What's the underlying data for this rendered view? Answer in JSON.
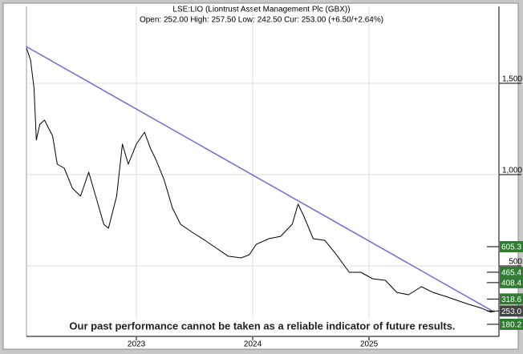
{
  "chart_data": {
    "type": "line",
    "title": "LSE:LIO (Liontrust Asset Management Plc (GBX))",
    "subtitle": "Open: 252.00 High: 257.50 Low: 242.50 Cur: 253.00 (+6.50/+2.64%)",
    "annotation": "Our past performance cannot be taken as a reliable indicator of future results.",
    "color": "#000000",
    "x": [
      2022.055,
      2022.09,
      2022.12,
      2022.14,
      2022.17,
      2022.21,
      2022.28,
      2022.32,
      2022.38,
      2022.45,
      2022.52,
      2022.59,
      2022.66,
      2022.72,
      2022.76,
      2022.83,
      2022.88,
      2022.93,
      2023.0,
      2023.07,
      2023.12,
      2023.17,
      2023.24,
      2023.31,
      2023.38,
      2023.48,
      2023.59,
      2023.69,
      2023.79,
      2023.9,
      2023.97,
      2024.03,
      2024.14,
      2024.24,
      2024.34,
      2024.39,
      2024.44,
      2024.52,
      2024.62,
      2024.72,
      2024.83,
      2024.93,
      2025.03,
      2025.14,
      2025.24,
      2025.34,
      2025.45,
      2025.55,
      2025.66,
      2025.76,
      2025.86,
      2025.97,
      2026.05,
      2026.07
    ],
    "values": [
      1693,
      1627,
      1474,
      1189,
      1276,
      1298,
      1211,
      1057,
      1035,
      925,
      882,
      1013,
      860,
      728,
      706,
      882,
      1167,
      1057,
      1167,
      1232,
      1145,
      1079,
      969,
      816,
      728,
      684,
      640,
      596,
      553,
      544,
      561,
      618,
      649,
      662,
      728,
      838,
      772,
      649,
      640,
      561,
      465,
      465,
      430,
      421,
      355,
      342,
      386,
      355,
      333,
      311,
      289,
      268,
      246,
      253
    ],
    "trend_line": {
      "color": "#6b6bdc",
      "x": [
        2022.05,
        2026.08
      ],
      "values": [
        1702,
        246
      ]
    },
    "price_markers": {
      "values": [
        605.3,
        465.4,
        408.4,
        318.6,
        253,
        180.2
      ],
      "value_labels": [
        "605.3",
        "465.4",
        "408.4",
        "318.6",
        "253.0",
        "180.2"
      ],
      "colors": [
        "#2f7d32",
        "#2f7d32",
        "#2f7d32",
        "#2f7d32",
        "#444444",
        "#2f7d32"
      ]
    },
    "xlim": [
      2022.055,
      2026.117
    ],
    "xticks": [
      2023,
      2024,
      2025
    ],
    "ylim": [
      114,
      1921
    ],
    "yticks": [
      500,
      {
        "value": 1000,
        "label": "1,000"
      },
      {
        "value": 1500,
        "label": "1,500"
      }
    ],
    "grid": true
  }
}
